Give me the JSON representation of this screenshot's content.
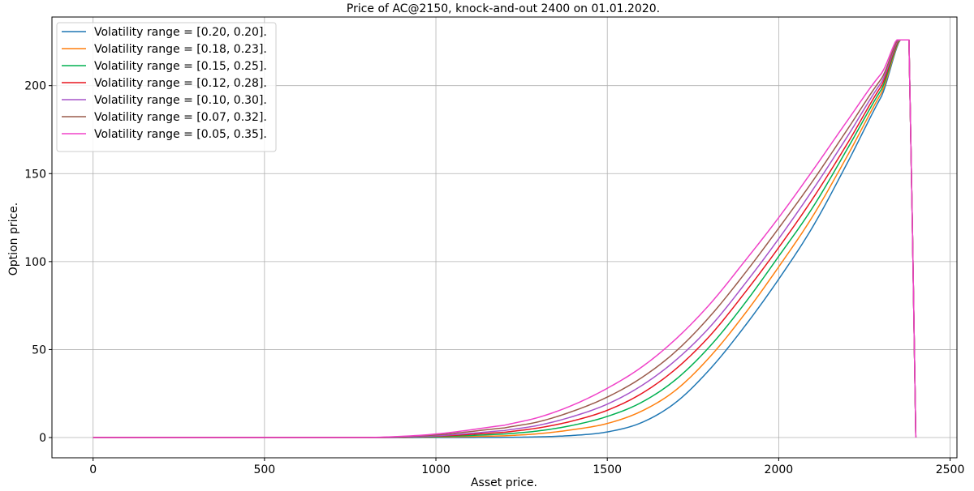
{
  "chart_data": {
    "type": "line",
    "title": "Price of AC@2150, knock-and-out 2400 on 01.01.2020.",
    "xlabel": "Asset price.",
    "ylabel": "Option price.",
    "xlim": [
      -120,
      2520
    ],
    "ylim": [
      -11.5,
      239
    ],
    "xticks": [
      0,
      500,
      1000,
      1500,
      2000,
      2500
    ],
    "yticks": [
      0,
      50,
      100,
      150,
      200
    ],
    "grid": true,
    "legend_position": "top-left",
    "series": [
      {
        "name": "Volatility range = [0.20, 0.20].",
        "color": "#1f77b4",
        "points": [
          [
            0,
            0
          ],
          [
            1000,
            0
          ],
          [
            1200,
            0.1
          ],
          [
            1300,
            0.4
          ],
          [
            1400,
            1.2
          ],
          [
            1500,
            3.2
          ],
          [
            1600,
            8.5
          ],
          [
            1700,
            20
          ],
          [
            1800,
            39
          ],
          [
            1900,
            63
          ],
          [
            2000,
            90
          ],
          [
            2100,
            120
          ],
          [
            2200,
            156
          ],
          [
            2300,
            194
          ],
          [
            2380,
            226
          ],
          [
            2390,
            120
          ],
          [
            2400,
            0
          ]
        ]
      },
      {
        "name": "Volatility range = [0.18, 0.23].",
        "color": "#ff7f0e",
        "points": [
          [
            0,
            0
          ],
          [
            900,
            0
          ],
          [
            1000,
            0.3
          ],
          [
            1200,
            1
          ],
          [
            1300,
            2.2
          ],
          [
            1400,
            4.5
          ],
          [
            1500,
            8
          ],
          [
            1600,
            15
          ],
          [
            1700,
            27
          ],
          [
            1800,
            46
          ],
          [
            1900,
            70
          ],
          [
            2000,
            97
          ],
          [
            2100,
            126
          ],
          [
            2200,
            160
          ],
          [
            2300,
            196
          ],
          [
            2380,
            226
          ],
          [
            2390,
            120
          ],
          [
            2400,
            0
          ]
        ]
      },
      {
        "name": "Volatility range = [0.15, 0.25].",
        "color": "#00b050",
        "points": [
          [
            0,
            0
          ],
          [
            900,
            0
          ],
          [
            1000,
            0.5
          ],
          [
            1200,
            2
          ],
          [
            1300,
            3.8
          ],
          [
            1400,
            7
          ],
          [
            1500,
            12
          ],
          [
            1600,
            20
          ],
          [
            1700,
            33
          ],
          [
            1800,
            52
          ],
          [
            1900,
            76
          ],
          [
            2000,
            103
          ],
          [
            2100,
            131
          ],
          [
            2200,
            164
          ],
          [
            2300,
            198
          ],
          [
            2380,
            226
          ],
          [
            2390,
            120
          ],
          [
            2400,
            0
          ]
        ]
      },
      {
        "name": "Volatility range = [0.12, 0.28].",
        "color": "#e8151f",
        "points": [
          [
            0,
            0
          ],
          [
            850,
            0
          ],
          [
            1000,
            0.8
          ],
          [
            1200,
            3
          ],
          [
            1300,
            5.5
          ],
          [
            1400,
            9.5
          ],
          [
            1500,
            15.5
          ],
          [
            1600,
            25
          ],
          [
            1700,
            39
          ],
          [
            1800,
            58
          ],
          [
            1900,
            82
          ],
          [
            2000,
            108
          ],
          [
            2100,
            136
          ],
          [
            2200,
            167
          ],
          [
            2300,
            200
          ],
          [
            2380,
            226
          ],
          [
            2390,
            120
          ],
          [
            2400,
            0
          ]
        ]
      },
      {
        "name": "Volatility range = [0.10, 0.30].",
        "color": "#a653c9",
        "points": [
          [
            0,
            0
          ],
          [
            850,
            0
          ],
          [
            1000,
            1
          ],
          [
            1200,
            4
          ],
          [
            1300,
            7
          ],
          [
            1400,
            12
          ],
          [
            1500,
            19
          ],
          [
            1600,
            29.5
          ],
          [
            1700,
            44
          ],
          [
            1800,
            63
          ],
          [
            1900,
            87
          ],
          [
            2000,
            113
          ],
          [
            2100,
            141
          ],
          [
            2200,
            171
          ],
          [
            2300,
            202
          ],
          [
            2380,
            226
          ],
          [
            2390,
            120
          ],
          [
            2400,
            0
          ]
        ]
      },
      {
        "name": "Volatility range = [0.07, 0.32].",
        "color": "#9a5b4b",
        "points": [
          [
            0,
            0
          ],
          [
            800,
            0
          ],
          [
            1000,
            1.5
          ],
          [
            1200,
            5.5
          ],
          [
            1300,
            9
          ],
          [
            1400,
            15
          ],
          [
            1500,
            23
          ],
          [
            1600,
            34
          ],
          [
            1700,
            49
          ],
          [
            1800,
            69
          ],
          [
            1900,
            93
          ],
          [
            2000,
            119
          ],
          [
            2100,
            146
          ],
          [
            2200,
            175
          ],
          [
            2300,
            204
          ],
          [
            2380,
            226
          ],
          [
            2390,
            120
          ],
          [
            2400,
            0
          ]
        ]
      },
      {
        "name": "Volatility range = [0.05, 0.35].",
        "color": "#f042c8",
        "points": [
          [
            0,
            0
          ],
          [
            800,
            0
          ],
          [
            1000,
            2
          ],
          [
            1200,
            7
          ],
          [
            1300,
            11.5
          ],
          [
            1400,
            18.5
          ],
          [
            1500,
            28
          ],
          [
            1600,
            40
          ],
          [
            1700,
            56
          ],
          [
            1800,
            76
          ],
          [
            1900,
            100
          ],
          [
            2000,
            125
          ],
          [
            2100,
            152
          ],
          [
            2200,
            180
          ],
          [
            2300,
            207
          ],
          [
            2380,
            226
          ],
          [
            2390,
            120
          ],
          [
            2400,
            0
          ]
        ]
      }
    ]
  }
}
